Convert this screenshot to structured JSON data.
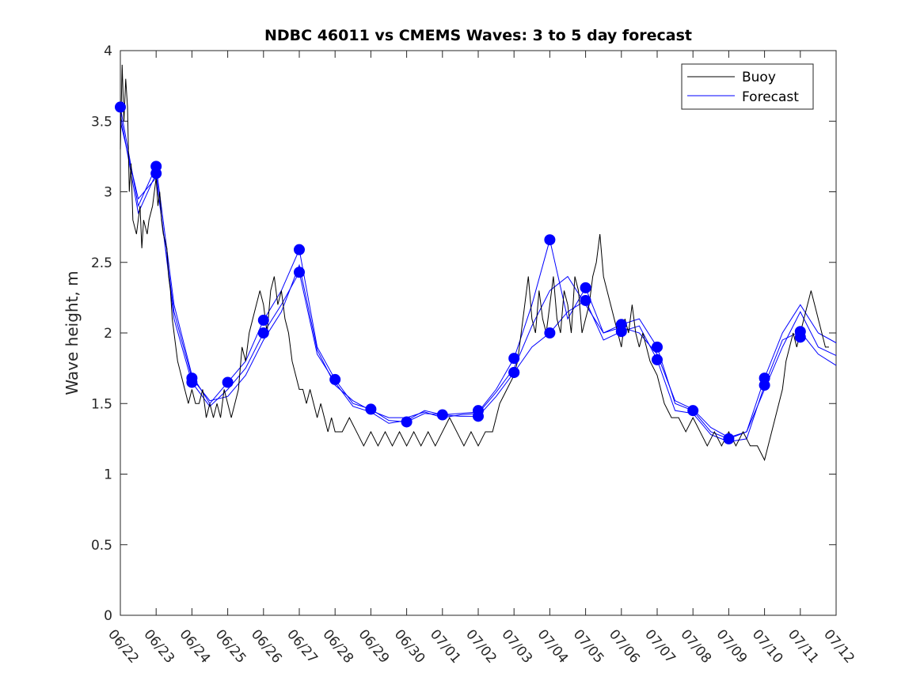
{
  "chart_data": {
    "type": "line",
    "title": "NDBC 46011 vs CMEMS Waves: 3 to 5 day forecast",
    "xlabel": "",
    "ylabel": "Wave height, m",
    "xlim": [
      "06/22",
      "07/12"
    ],
    "ylim": [
      0,
      4
    ],
    "x_tick_labels": [
      "06/22",
      "06/23",
      "06/24",
      "06/25",
      "06/26",
      "06/27",
      "06/28",
      "06/29",
      "06/30",
      "07/01",
      "07/02",
      "07/03",
      "07/04",
      "07/05",
      "07/06",
      "07/07",
      "07/08",
      "07/09",
      "07/10",
      "07/11",
      "07/12"
    ],
    "y_tick_labels": [
      "0",
      "0.5",
      "1",
      "1.5",
      "2",
      "2.5",
      "3",
      "3.5",
      "4"
    ],
    "y_ticks": [
      0,
      0.5,
      1,
      1.5,
      2,
      2.5,
      3,
      3.5,
      4
    ],
    "grid": false,
    "legend": {
      "placement": "top-right",
      "entries": [
        "Buoy",
        "Forecast"
      ]
    },
    "colors": {
      "buoy": "#000000",
      "forecast": "#0000ff"
    },
    "buoy": {
      "name": "Buoy",
      "x_days_since_0622": [
        0,
        0.05,
        0.1,
        0.15,
        0.2,
        0.25,
        0.3,
        0.35,
        0.45,
        0.55,
        0.6,
        0.65,
        0.75,
        0.8,
        0.9,
        1.0,
        1.05,
        1.1,
        1.15,
        1.2,
        1.3,
        1.35,
        1.4,
        1.45,
        1.5,
        1.6,
        1.7,
        1.8,
        1.9,
        2.0,
        2.1,
        2.2,
        2.3,
        2.4,
        2.5,
        2.6,
        2.7,
        2.8,
        2.9,
        3.0,
        3.1,
        3.2,
        3.3,
        3.4,
        3.5,
        3.6,
        3.7,
        3.8,
        3.9,
        4.0,
        4.1,
        4.2,
        4.3,
        4.4,
        4.5,
        4.6,
        4.7,
        4.8,
        4.9,
        5.0,
        5.1,
        5.2,
        5.3,
        5.4,
        5.5,
        5.6,
        5.7,
        5.8,
        5.9,
        6.0,
        6.2,
        6.4,
        6.6,
        6.8,
        7.0,
        7.2,
        7.4,
        7.6,
        7.8,
        8.0,
        8.2,
        8.4,
        8.6,
        8.8,
        9.0,
        9.2,
        9.4,
        9.6,
        9.8,
        10.0,
        10.2,
        10.4,
        10.6,
        10.8,
        11.0,
        11.1,
        11.2,
        11.3,
        11.4,
        11.5,
        11.6,
        11.7,
        11.8,
        11.9,
        12.0,
        12.1,
        12.2,
        12.3,
        12.4,
        12.5,
        12.6,
        12.7,
        12.8,
        12.9,
        13.0,
        13.1,
        13.2,
        13.3,
        13.4,
        13.5,
        13.6,
        13.7,
        13.8,
        13.9,
        14.0,
        14.1,
        14.2,
        14.3,
        14.4,
        14.5,
        14.6,
        14.8,
        15.0,
        15.2,
        15.4,
        15.6,
        15.8,
        16.0,
        16.2,
        16.4,
        16.6,
        16.8,
        17.0,
        17.2,
        17.4,
        17.6,
        17.8,
        18.0,
        18.1,
        18.2,
        18.3,
        18.4,
        18.5,
        18.6,
        18.7,
        18.8,
        18.9,
        19.0,
        19.1,
        19.2,
        19.3,
        19.4,
        19.5,
        19.6,
        19.7,
        19.8,
        19.9,
        20.0
      ],
      "values": [
        3.3,
        3.9,
        3.5,
        3.8,
        3.6,
        3.0,
        3.2,
        2.8,
        2.7,
        2.9,
        2.6,
        2.8,
        2.7,
        2.8,
        2.9,
        3.1,
        2.9,
        3.0,
        2.8,
        2.7,
        2.6,
        2.4,
        2.3,
        2.1,
        2.0,
        1.8,
        1.7,
        1.6,
        1.5,
        1.6,
        1.5,
        1.5,
        1.6,
        1.4,
        1.5,
        1.4,
        1.5,
        1.4,
        1.6,
        1.5,
        1.4,
        1.5,
        1.6,
        1.9,
        1.8,
        2.0,
        2.1,
        2.2,
        2.3,
        2.2,
        2.0,
        2.3,
        2.4,
        2.2,
        2.3,
        2.1,
        2.0,
        1.8,
        1.7,
        1.6,
        1.6,
        1.5,
        1.6,
        1.5,
        1.4,
        1.5,
        1.4,
        1.3,
        1.4,
        1.3,
        1.3,
        1.4,
        1.3,
        1.2,
        1.3,
        1.2,
        1.3,
        1.2,
        1.3,
        1.2,
        1.3,
        1.2,
        1.3,
        1.2,
        1.3,
        1.4,
        1.3,
        1.2,
        1.3,
        1.2,
        1.3,
        1.3,
        1.5,
        1.6,
        1.7,
        1.8,
        2.0,
        2.2,
        2.4,
        2.1,
        2.0,
        2.3,
        2.1,
        2.0,
        2.2,
        2.4,
        2.1,
        2.0,
        2.3,
        2.2,
        2.0,
        2.4,
        2.3,
        2.0,
        2.1,
        2.2,
        2.4,
        2.5,
        2.7,
        2.4,
        2.3,
        2.2,
        2.1,
        2.0,
        1.9,
        2.1,
        2.0,
        2.2,
        2.0,
        1.9,
        2.0,
        1.8,
        1.7,
        1.5,
        1.4,
        1.4,
        1.3,
        1.4,
        1.3,
        1.2,
        1.3,
        1.2,
        1.3,
        1.2,
        1.3,
        1.2,
        1.2,
        1.1,
        1.2,
        1.3,
        1.4,
        1.5,
        1.6,
        1.8,
        1.9,
        2.0,
        1.9,
        2.0,
        2.1,
        2.2,
        2.3,
        2.2,
        2.1,
        2.0,
        1.9,
        1.9
      ]
    },
    "forecast_series": [
      {
        "name": "Forecast",
        "x_days_since_0622": [
          0,
          0.5,
          1,
          1.5,
          2,
          2.5,
          3,
          3.5,
          4,
          4.5,
          5,
          5.5,
          6,
          6.5,
          7,
          7.5,
          8,
          8.5,
          9,
          9.5,
          10,
          10.5,
          11,
          11.5,
          12,
          12.5,
          13,
          13.5,
          14,
          14.5,
          15,
          15.5,
          16,
          16.5,
          17,
          17.5,
          18,
          18.5,
          19,
          19.5,
          20
        ],
        "values": [
          3.6,
          2.9,
          3.18,
          2.2,
          1.7,
          1.5,
          1.65,
          1.8,
          2.09,
          2.3,
          2.59,
          1.9,
          1.67,
          1.5,
          1.46,
          1.38,
          1.37,
          1.43,
          1.42,
          1.43,
          1.44,
          1.6,
          1.82,
          2.2,
          2.66,
          2.1,
          2.32,
          2.0,
          2.06,
          2.1,
          1.9,
          1.5,
          1.45,
          1.3,
          1.25,
          1.3,
          1.68,
          2.0,
          2.2,
          2.0,
          1.93
        ]
      },
      {
        "name": "",
        "x_days_since_0622": [
          0,
          0.5,
          1,
          1.5,
          2,
          2.5,
          3,
          3.5,
          4,
          4.5,
          5,
          5.5,
          6,
          6.5,
          7,
          7.5,
          8,
          8.5,
          9,
          9.5,
          10,
          10.5,
          11,
          11.5,
          12,
          12.5,
          13,
          13.5,
          14,
          14.5,
          15,
          15.5,
          16,
          16.5,
          17,
          17.5,
          18,
          18.5,
          19,
          19.5,
          20
        ],
        "values": [
          3.55,
          2.85,
          3.13,
          2.1,
          1.65,
          1.48,
          1.6,
          1.75,
          2.0,
          2.2,
          2.43,
          1.85,
          1.65,
          1.48,
          1.44,
          1.36,
          1.38,
          1.45,
          1.42,
          1.41,
          1.41,
          1.55,
          1.72,
          1.9,
          2.0,
          2.15,
          2.23,
          1.95,
          2.01,
          2.05,
          1.81,
          1.45,
          1.43,
          1.28,
          1.23,
          1.25,
          1.63,
          1.95,
          2.01,
          1.85,
          1.77
        ]
      },
      {
        "name": "",
        "x_days_since_0622": [
          0,
          0.5,
          1,
          1.5,
          2,
          2.5,
          3,
          3.5,
          4,
          4.5,
          5,
          5.5,
          6,
          6.5,
          7,
          7.5,
          8,
          8.5,
          9,
          9.5,
          10,
          10.5,
          11,
          11.5,
          12,
          12.5,
          13,
          13.5,
          14,
          14.5,
          15,
          15.5,
          16,
          16.5,
          17,
          17.5,
          18,
          18.5,
          19,
          19.5,
          20
        ],
        "values": [
          3.5,
          2.95,
          3.1,
          2.15,
          1.68,
          1.52,
          1.55,
          1.7,
          1.95,
          2.15,
          2.48,
          1.88,
          1.63,
          1.52,
          1.45,
          1.4,
          1.4,
          1.44,
          1.4,
          1.42,
          1.43,
          1.58,
          1.75,
          2.05,
          2.3,
          2.4,
          2.2,
          2.0,
          2.04,
          2.0,
          1.85,
          1.52,
          1.46,
          1.33,
          1.26,
          1.3,
          1.6,
          1.9,
          2.15,
          1.9,
          1.84
        ]
      }
    ],
    "forecast_markers": {
      "x_days_since_0622": [
        0,
        1,
        1,
        2,
        2,
        3,
        4,
        4,
        5,
        5,
        6,
        7,
        8,
        9,
        10,
        10,
        11,
        11,
        11,
        12,
        12,
        13,
        13,
        14,
        14,
        15,
        15,
        16,
        17,
        18,
        18,
        19,
        19
      ],
      "values": [
        3.6,
        3.18,
        3.13,
        1.68,
        1.65,
        1.65,
        2.09,
        2.0,
        2.59,
        2.43,
        1.67,
        1.46,
        1.37,
        1.42,
        1.45,
        1.41,
        1.82,
        1.72,
        1.72,
        2.66,
        2.0,
        2.32,
        2.23,
        2.06,
        2.01,
        1.9,
        1.81,
        1.45,
        1.25,
        1.68,
        1.63,
        2.01,
        1.97
      ]
    }
  }
}
